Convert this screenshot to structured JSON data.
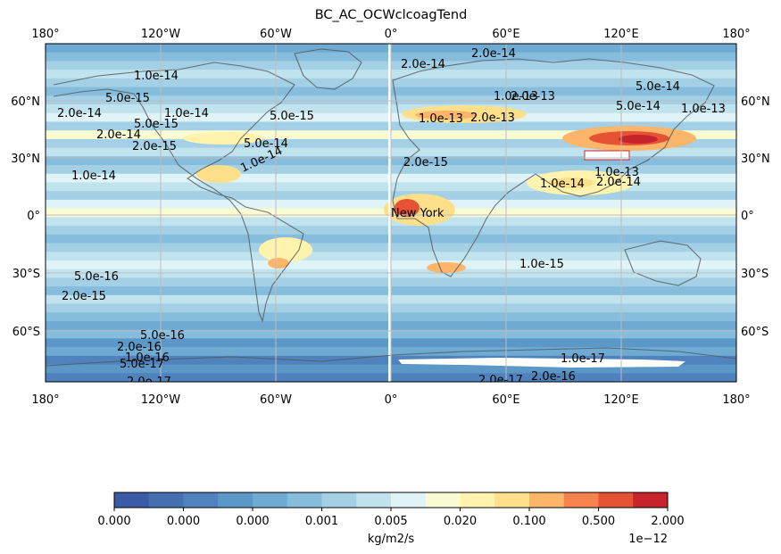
{
  "chart_data": {
    "type": "heatmap",
    "title": "BC_AC_OCWclcoagTend",
    "projection": "PlateCarree",
    "x_ticks": [
      "180°",
      "120°W",
      "60°W",
      "0°",
      "60°E",
      "120°E",
      "180°"
    ],
    "y_ticks": [
      "60°N",
      "30°N",
      "0°",
      "30°S",
      "60°S"
    ],
    "marker_label": "New York",
    "colorbar": {
      "label": "kg/m2/s",
      "offset_text": "1e−12",
      "tick_labels": [
        "0.000",
        "0.000",
        "0.000",
        "0.001",
        "0.005",
        "0.020",
        "0.100",
        "0.500",
        "2.000"
      ],
      "colors": [
        "#3b5ba6",
        "#4570b0",
        "#5083bd",
        "#5c98c7",
        "#6eaad2",
        "#86bcdc",
        "#a3d0e5",
        "#c0e3ee",
        "#e0f3f7",
        "#fafbd3",
        "#fff3ad",
        "#fee08b",
        "#fdb56a",
        "#f7824e",
        "#e55234",
        "#c7252c"
      ]
    },
    "contour_labels": [
      "2.0e-14",
      "1.0e-14",
      "5.0e-15",
      "2.0e-14",
      "1.0e-14",
      "5.0e-15",
      "2.0e-14",
      "1.0e-13",
      "2.0e-13",
      "5.0e-14",
      "1.0e-13",
      "2.0e-13",
      "5.0e-14",
      "1.0e-13",
      "2.0e-15",
      "1.0e-14",
      "5.0e-14",
      "2.0e-14",
      "5.0e-15",
      "1.0e-14",
      "1.0e-13",
      "2.0e-15",
      "1.0e-14",
      "2.0e-14",
      "5.0e-16",
      "2.0e-15",
      "1.0e-15",
      "5.0e-16",
      "2.0e-16",
      "1.0e-16",
      "5.0e-17",
      "2.0e-17",
      "1.0e-17",
      "2.0e-16",
      "2.0e-17"
    ]
  }
}
